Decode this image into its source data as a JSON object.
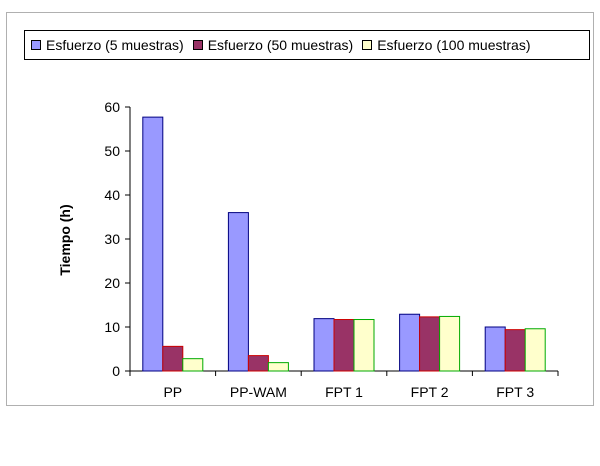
{
  "chart_data": {
    "type": "bar",
    "title": "",
    "xlabel": "",
    "ylabel": "Tiempo (h)",
    "ylim": [
      0,
      60
    ],
    "yticks": [
      0,
      10,
      20,
      30,
      40,
      50,
      60
    ],
    "grid": false,
    "legend_position": "top",
    "categories": [
      "PP",
      "PP-WAM",
      "FPT 1",
      "FPT 2",
      "FPT 3"
    ],
    "series": [
      {
        "name": "Esfuerzo (5 muestras)",
        "color": "#9999ff",
        "edge": "#000080",
        "values": [
          57.7,
          36.0,
          11.9,
          12.9,
          10.0
        ]
      },
      {
        "name": "Esfuerzo (50 muestras)",
        "color": "#993366",
        "edge": "#cc0000",
        "values": [
          5.6,
          3.5,
          11.7,
          12.3,
          9.4
        ]
      },
      {
        "name": "Esfuerzo (100 muestras)",
        "color": "#ffffcc",
        "edge": "#00aa00",
        "values": [
          2.8,
          1.9,
          11.7,
          12.4,
          9.6
        ]
      }
    ]
  }
}
